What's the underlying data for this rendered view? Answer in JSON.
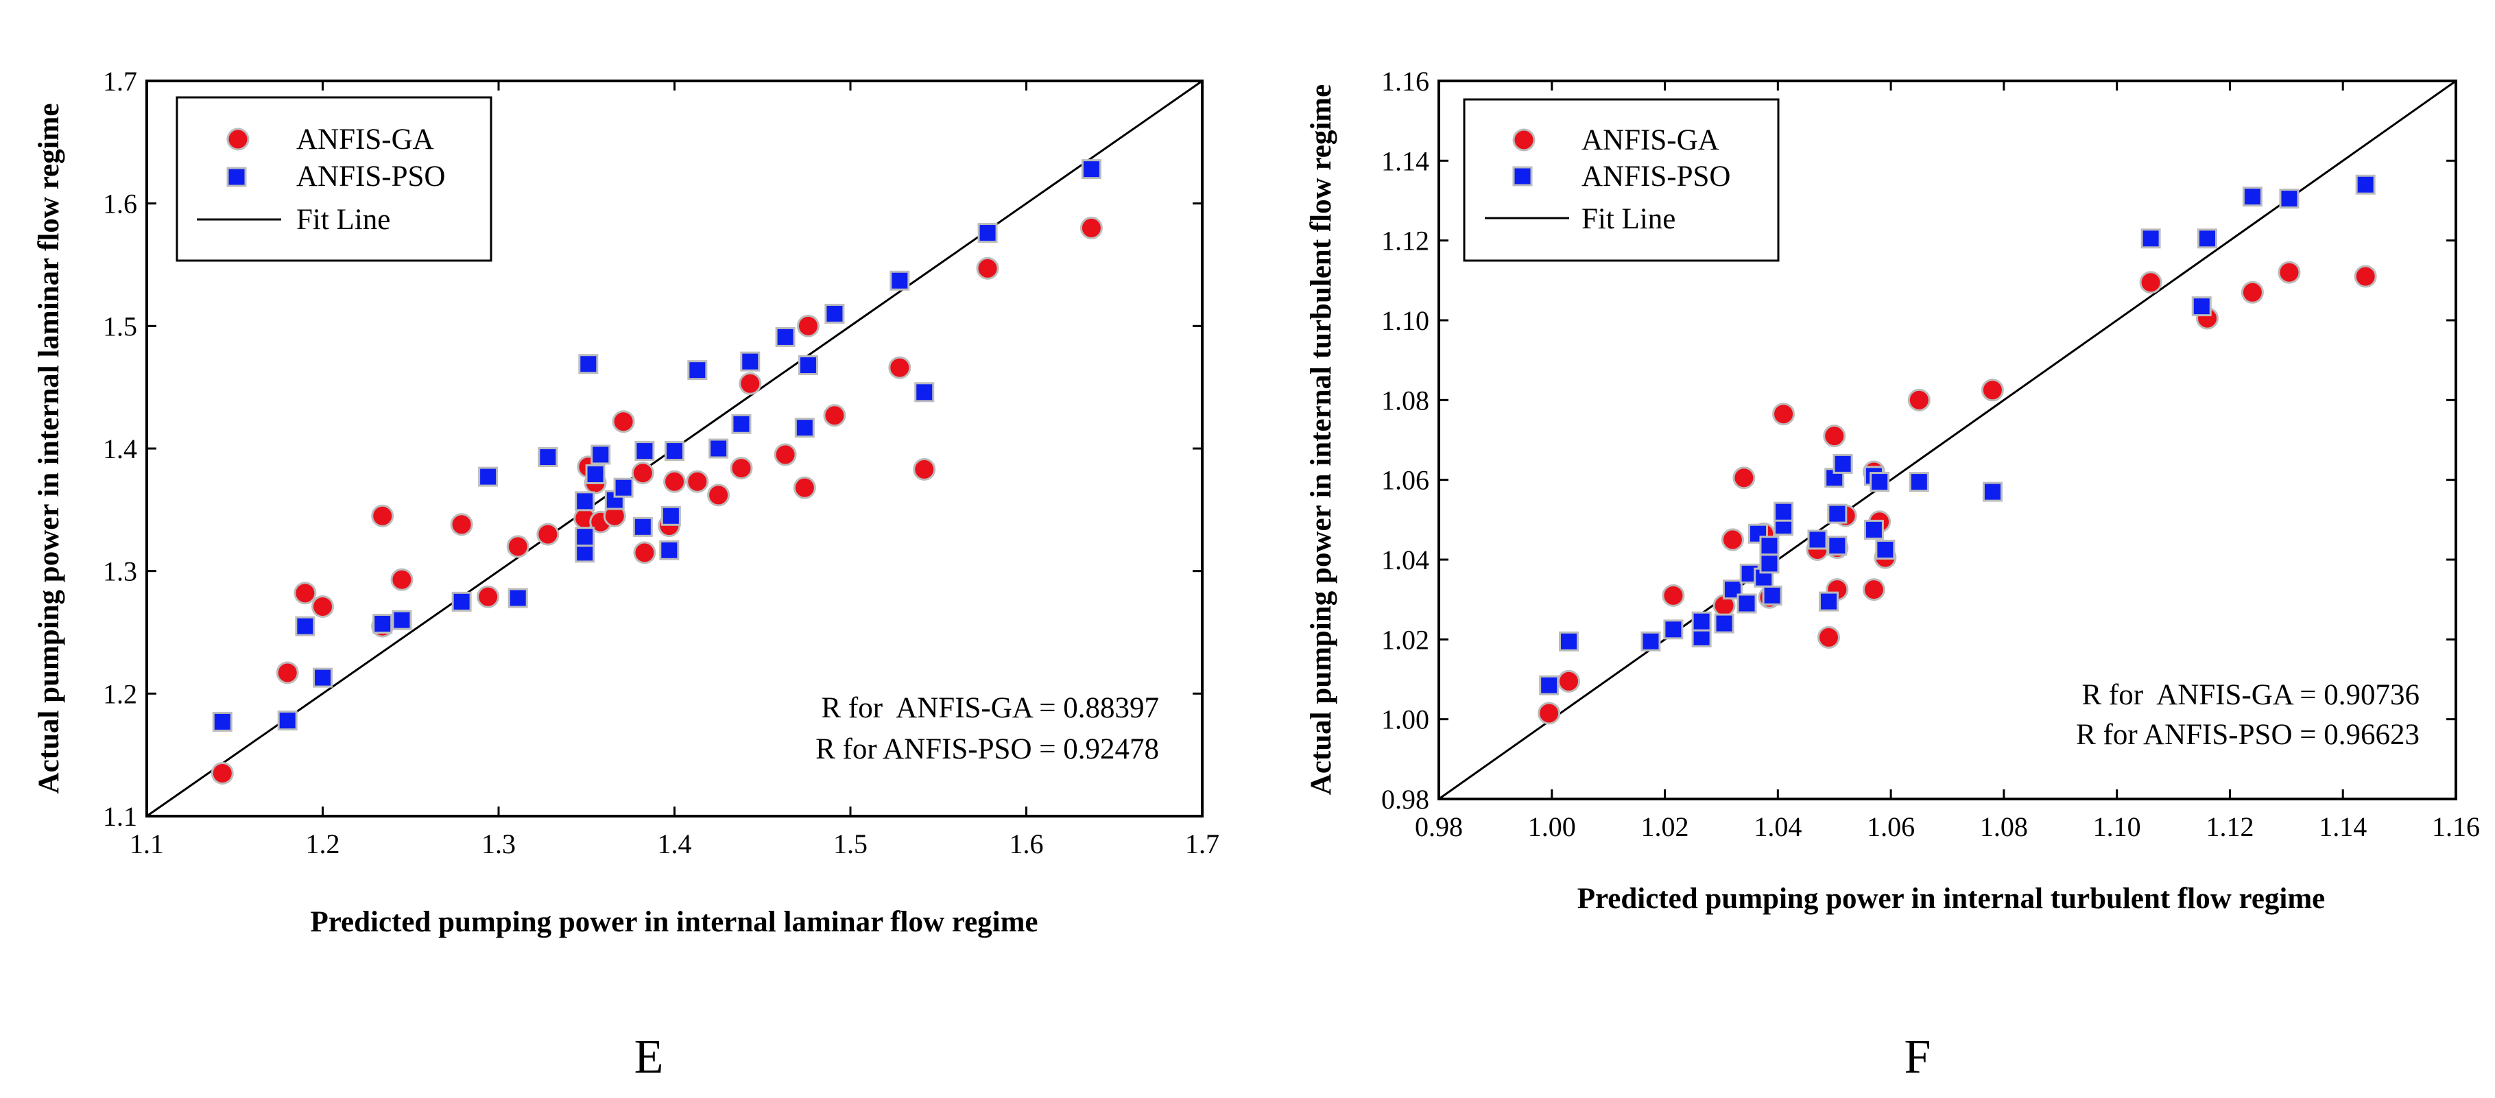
{
  "colors": {
    "ga": "#e8101a",
    "pso": "#0d1ff0",
    "marker_edge": "#bcbcbc",
    "fit": "#000000"
  },
  "chart_data": [
    {
      "type": "scatter",
      "panel": "E",
      "xlabel": "Predicted pumping power in internal laminar flow regime",
      "ylabel": "Actual pumping power in internal laminar flow regime",
      "xlim": [
        1.1,
        1.7
      ],
      "ylim": [
        1.1,
        1.7
      ],
      "xticks": [
        "1.1",
        "1.2",
        "1.3",
        "1.4",
        "1.5",
        "1.6",
        "1.7"
      ],
      "yticks": [
        "1.1",
        "1.2",
        "1.3",
        "1.4",
        "1.5",
        "1.6",
        "1.7"
      ],
      "legend": {
        "position": "top-left",
        "entries": [
          "ANFIS-GA",
          "ANFIS-PSO",
          "Fit Line"
        ]
      },
      "annotations": [
        "R for  ANFIS-GA = 0.88397",
        "R for ANFIS-PSO = 0.92478"
      ],
      "fit_line": [
        [
          1.1,
          1.1
        ],
        [
          1.7,
          1.7
        ]
      ],
      "series": [
        {
          "name": "ANFIS-GA",
          "points": [
            [
              1.143,
              1.135
            ],
            [
              1.18,
              1.217
            ],
            [
              1.19,
              1.282
            ],
            [
              1.2,
              1.271
            ],
            [
              1.234,
              1.345
            ],
            [
              1.234,
              1.255
            ],
            [
              1.245,
              1.293
            ],
            [
              1.279,
              1.338
            ],
            [
              1.294,
              1.279
            ],
            [
              1.311,
              1.32
            ],
            [
              1.328,
              1.33
            ],
            [
              1.349,
              1.343
            ],
            [
              1.351,
              1.385
            ],
            [
              1.355,
              1.372
            ],
            [
              1.358,
              1.34
            ],
            [
              1.366,
              1.345
            ],
            [
              1.371,
              1.422
            ],
            [
              1.382,
              1.38
            ],
            [
              1.383,
              1.315
            ],
            [
              1.397,
              1.337
            ],
            [
              1.4,
              1.373
            ],
            [
              1.413,
              1.373
            ],
            [
              1.425,
              1.362
            ],
            [
              1.438,
              1.384
            ],
            [
              1.443,
              1.453
            ],
            [
              1.463,
              1.395
            ],
            [
              1.474,
              1.368
            ],
            [
              1.476,
              1.5
            ],
            [
              1.491,
              1.427
            ],
            [
              1.528,
              1.466
            ],
            [
              1.542,
              1.383
            ],
            [
              1.578,
              1.547
            ],
            [
              1.637,
              1.58
            ]
          ]
        },
        {
          "name": "ANFIS-PSO",
          "points": [
            [
              1.143,
              1.177
            ],
            [
              1.18,
              1.178
            ],
            [
              1.19,
              1.255
            ],
            [
              1.2,
              1.213
            ],
            [
              1.234,
              1.257
            ],
            [
              1.245,
              1.26
            ],
            [
              1.279,
              1.275
            ],
            [
              1.294,
              1.377
            ],
            [
              1.311,
              1.278
            ],
            [
              1.328,
              1.393
            ],
            [
              1.349,
              1.315
            ],
            [
              1.349,
              1.328
            ],
            [
              1.349,
              1.357
            ],
            [
              1.351,
              1.469
            ],
            [
              1.355,
              1.379
            ],
            [
              1.358,
              1.395
            ],
            [
              1.366,
              1.358
            ],
            [
              1.371,
              1.368
            ],
            [
              1.382,
              1.336
            ],
            [
              1.383,
              1.398
            ],
            [
              1.397,
              1.317
            ],
            [
              1.398,
              1.345
            ],
            [
              1.4,
              1.398
            ],
            [
              1.413,
              1.464
            ],
            [
              1.425,
              1.4
            ],
            [
              1.438,
              1.42
            ],
            [
              1.443,
              1.471
            ],
            [
              1.463,
              1.491
            ],
            [
              1.474,
              1.417
            ],
            [
              1.476,
              1.468
            ],
            [
              1.491,
              1.51
            ],
            [
              1.528,
              1.537
            ],
            [
              1.542,
              1.446
            ],
            [
              1.578,
              1.576
            ],
            [
              1.637,
              1.628
            ]
          ]
        }
      ]
    },
    {
      "type": "scatter",
      "panel": "F",
      "xlabel": "Predicted pumping power in internal turbulent flow regime",
      "ylabel": "Actual pumping power in internal turbulent flow regime",
      "xlim": [
        0.98,
        1.16
      ],
      "ylim": [
        0.98,
        1.16
      ],
      "xticks": [
        "0.98",
        "1.00",
        "1.02",
        "1.04",
        "1.06",
        "1.08",
        "1.10",
        "1.12",
        "1.14",
        "1.16"
      ],
      "yticks": [
        "0.98",
        "1.00",
        "1.02",
        "1.04",
        "1.06",
        "1.08",
        "1.10",
        "1.12",
        "1.14",
        "1.16"
      ],
      "legend": {
        "position": "top-left",
        "entries": [
          "ANFIS-GA",
          "ANFIS-PSO",
          "Fit Line"
        ]
      },
      "annotations": [
        "R for  ANFIS-GA = 0.90736",
        "R for ANFIS-PSO = 0.96623"
      ],
      "fit_line": [
        [
          0.98,
          0.98
        ],
        [
          1.16,
          1.16
        ]
      ],
      "series": [
        {
          "name": "ANFIS-GA",
          "points": [
            [
              0.9995,
              1.0015
            ],
            [
              1.003,
              1.0095
            ],
            [
              1.0215,
              1.031
            ],
            [
              1.0305,
              1.0285
            ],
            [
              1.032,
              1.045
            ],
            [
              1.034,
              1.0605
            ],
            [
              1.0375,
              1.0465
            ],
            [
              1.0385,
              1.0305
            ],
            [
              1.041,
              1.0765
            ],
            [
              1.047,
              1.0425
            ],
            [
              1.049,
              1.0205
            ],
            [
              1.05,
              1.071
            ],
            [
              1.0505,
              1.0325
            ],
            [
              1.0505,
              1.043
            ],
            [
              1.052,
              1.051
            ],
            [
              1.057,
              1.0325
            ],
            [
              1.057,
              1.062
            ],
            [
              1.058,
              1.0495
            ],
            [
              1.059,
              1.0405
            ],
            [
              1.065,
              1.08
            ],
            [
              1.078,
              1.0825
            ],
            [
              1.106,
              1.1095
            ],
            [
              1.116,
              1.1005
            ],
            [
              1.124,
              1.107
            ],
            [
              1.1305,
              1.112
            ],
            [
              1.144,
              1.111
            ]
          ]
        },
        {
          "name": "ANFIS-PSO",
          "points": [
            [
              0.9995,
              1.0085
            ],
            [
              1.003,
              1.0195
            ],
            [
              1.0175,
              1.0195
            ],
            [
              1.0215,
              1.0225
            ],
            [
              1.0265,
              1.0205
            ],
            [
              1.0265,
              1.0245
            ],
            [
              1.0305,
              1.024
            ],
            [
              1.032,
              1.0325
            ],
            [
              1.0345,
              1.029
            ],
            [
              1.035,
              1.0365
            ],
            [
              1.0365,
              1.0465
            ],
            [
              1.0375,
              1.0355
            ],
            [
              1.0385,
              1.039
            ],
            [
              1.0385,
              1.0435
            ],
            [
              1.039,
              1.031
            ],
            [
              1.041,
              1.0485
            ],
            [
              1.041,
              1.052
            ],
            [
              1.047,
              1.045
            ],
            [
              1.049,
              1.0295
            ],
            [
              1.05,
              1.0605
            ],
            [
              1.0505,
              1.0435
            ],
            [
              1.0505,
              1.0515
            ],
            [
              1.0515,
              1.064
            ],
            [
              1.057,
              1.0475
            ],
            [
              1.057,
              1.061
            ],
            [
              1.058,
              1.0595
            ],
            [
              1.059,
              1.0425
            ],
            [
              1.065,
              1.0595
            ],
            [
              1.078,
              1.057
            ],
            [
              1.106,
              1.1205
            ],
            [
              1.115,
              1.1035
            ],
            [
              1.116,
              1.1205
            ],
            [
              1.124,
              1.131
            ],
            [
              1.1305,
              1.1305
            ],
            [
              1.144,
              1.134
            ]
          ]
        }
      ]
    }
  ]
}
